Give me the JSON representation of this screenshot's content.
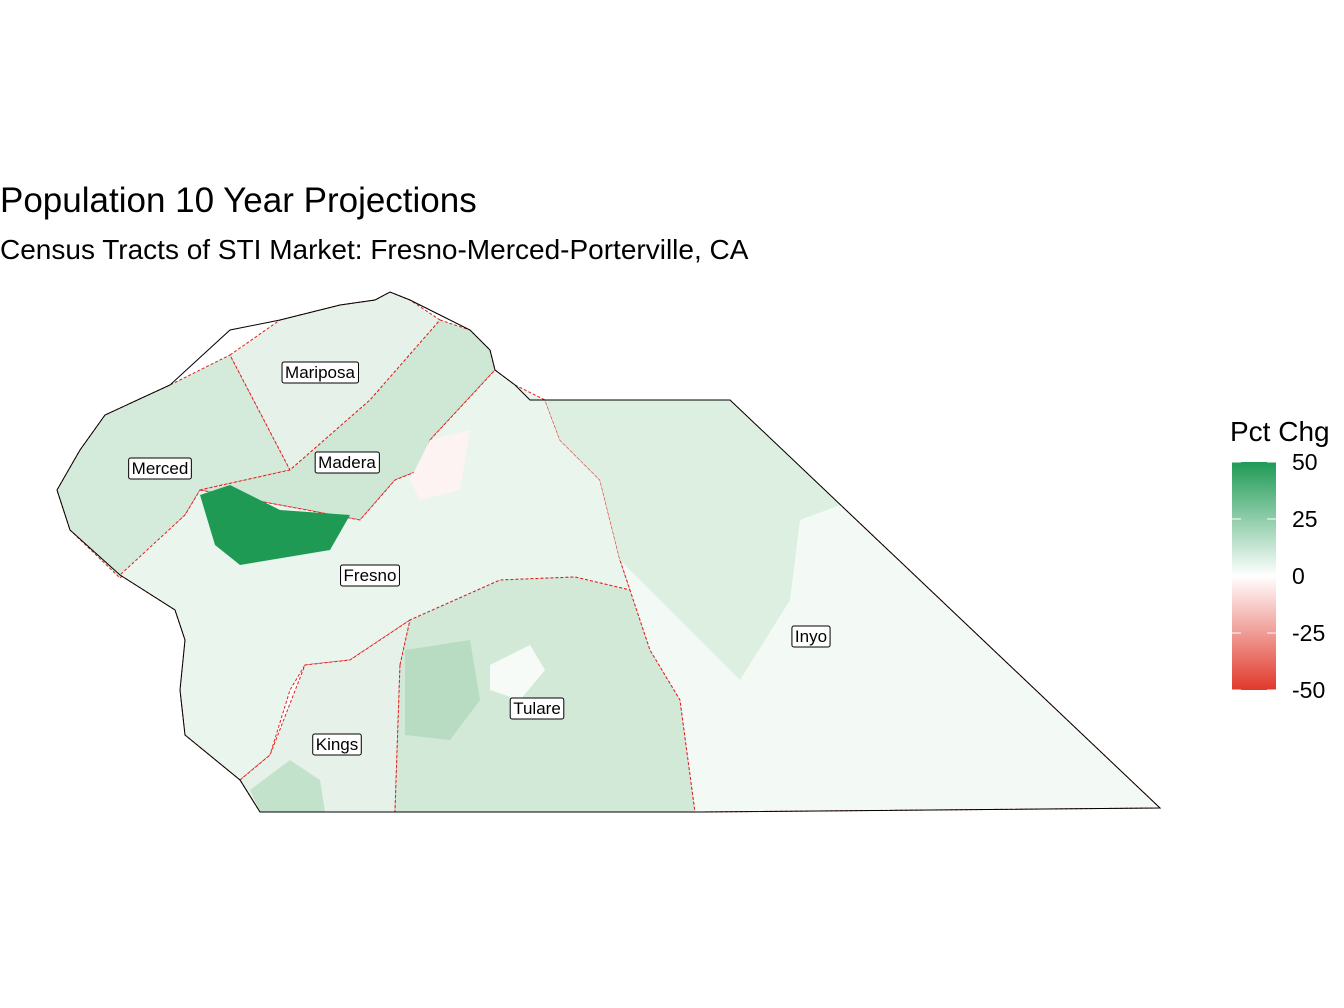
{
  "title": "Population 10 Year Projections",
  "subtitle": "Census Tracts of STI Market: Fresno-Merced-Porterville, CA",
  "legend": {
    "title": "Pct Chg",
    "limits": [
      -50,
      50
    ],
    "ticks": [
      50,
      25,
      0,
      -25,
      -50
    ],
    "colors": {
      "low": "#e0392b",
      "mid": "#ffffff",
      "high": "#1f9a55"
    }
  },
  "counties": [
    {
      "label": "Mariposa"
    },
    {
      "label": "Merced"
    },
    {
      "label": "Madera"
    },
    {
      "label": "Fresno"
    },
    {
      "label": "Inyo"
    },
    {
      "label": "Tulare"
    },
    {
      "label": "Kings"
    }
  ]
}
